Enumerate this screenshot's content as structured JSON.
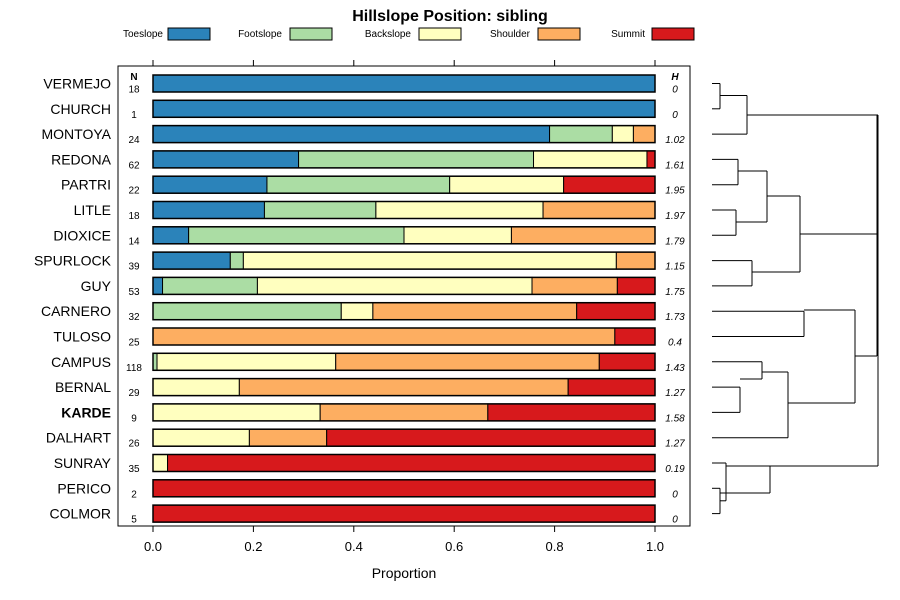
{
  "chart_data": {
    "type": "bar",
    "orientation": "horizontal",
    "stacked": true,
    "title": "Hillslope Position: sibling",
    "xlabel": "Proportion",
    "ylabel": "",
    "xlim": [
      0,
      1
    ],
    "x_ticks": [
      "0.0",
      "0.2",
      "0.4",
      "0.6",
      "0.8",
      "1.0"
    ],
    "n_header": "N",
    "h_header": "H",
    "legend": [
      {
        "name": "Toeslope",
        "color": "#2B83BA"
      },
      {
        "name": "Footslope",
        "color": "#ABDDA4"
      },
      {
        "name": "Backslope",
        "color": "#FFFFBF"
      },
      {
        "name": "Shoulder",
        "color": "#FDAE61"
      },
      {
        "name": "Summit",
        "color": "#D7191C"
      }
    ],
    "rows": [
      {
        "label": "VERMEJO",
        "n": "18",
        "h": "0",
        "bold": false,
        "values": [
          1.0,
          0,
          0,
          0,
          0
        ]
      },
      {
        "label": "CHURCH",
        "n": "1",
        "h": "0",
        "bold": false,
        "values": [
          1.0,
          0,
          0,
          0,
          0
        ]
      },
      {
        "label": "MONTOYA",
        "n": "24",
        "h": "1.02",
        "bold": false,
        "values": [
          0.79,
          0.125,
          0.042,
          0.043,
          0
        ]
      },
      {
        "label": "REDONA",
        "n": "62",
        "h": "1.61",
        "bold": false,
        "values": [
          0.29,
          0.468,
          0.226,
          0,
          0.016
        ]
      },
      {
        "label": "PARTRI",
        "n": "22",
        "h": "1.95",
        "bold": false,
        "values": [
          0.227,
          0.364,
          0.227,
          0,
          0.182
        ]
      },
      {
        "label": "LITLE",
        "n": "18",
        "h": "1.97",
        "bold": false,
        "values": [
          0.222,
          0.222,
          0.333,
          0.223,
          0
        ]
      },
      {
        "label": "DIOXICE",
        "n": "14",
        "h": "1.79",
        "bold": false,
        "values": [
          0.071,
          0.429,
          0.214,
          0.286,
          0
        ]
      },
      {
        "label": "SPURLOCK",
        "n": "39",
        "h": "1.15",
        "bold": false,
        "values": [
          0.154,
          0.026,
          0.743,
          0.077,
          0
        ]
      },
      {
        "label": "GUY",
        "n": "53",
        "h": "1.75",
        "bold": false,
        "values": [
          0.019,
          0.189,
          0.547,
          0.17,
          0.075
        ]
      },
      {
        "label": "CARNERO",
        "n": "32",
        "h": "1.73",
        "bold": false,
        "values": [
          0,
          0.375,
          0.063,
          0.406,
          0.156
        ]
      },
      {
        "label": "TULOSO",
        "n": "25",
        "h": "0.4",
        "bold": false,
        "values": [
          0,
          0,
          0,
          0.92,
          0.08
        ]
      },
      {
        "label": "CAMPUS",
        "n": "118",
        "h": "1.43",
        "bold": false,
        "values": [
          0,
          0.008,
          0.356,
          0.525,
          0.111
        ]
      },
      {
        "label": "BERNAL",
        "n": "29",
        "h": "1.27",
        "bold": false,
        "values": [
          0,
          0,
          0.172,
          0.655,
          0.173
        ]
      },
      {
        "label": "KARDE",
        "n": "9",
        "h": "1.58",
        "bold": true,
        "values": [
          0,
          0,
          0.333,
          0.334,
          0.333
        ]
      },
      {
        "label": "DALHART",
        "n": "26",
        "h": "1.27",
        "bold": false,
        "values": [
          0,
          0,
          0.192,
          0.154,
          0.654
        ]
      },
      {
        "label": "SUNRAY",
        "n": "35",
        "h": "0.19",
        "bold": false,
        "values": [
          0,
          0,
          0.029,
          0,
          0.971
        ]
      },
      {
        "label": "PERICO",
        "n": "2",
        "h": "0",
        "bold": false,
        "values": [
          0,
          0,
          0,
          0,
          1.0
        ]
      },
      {
        "label": "COLMOR",
        "n": "5",
        "h": "0",
        "bold": false,
        "values": [
          0,
          0,
          0,
          0,
          1.0
        ]
      }
    ],
    "dendrogram": {
      "type": "hierarchical-clustering",
      "leaf_order": [
        "VERMEJO",
        "CHURCH",
        "MONTOYA",
        "REDONA",
        "PARTRI",
        "LITLE",
        "DIOXICE",
        "SPURLOCK",
        "GUY",
        "CARNERO",
        "TULOSO",
        "CAMPUS",
        "BERNAL",
        "KARDE",
        "DALHART",
        "SUNRAY",
        "PERICO",
        "COLMOR"
      ]
    }
  }
}
